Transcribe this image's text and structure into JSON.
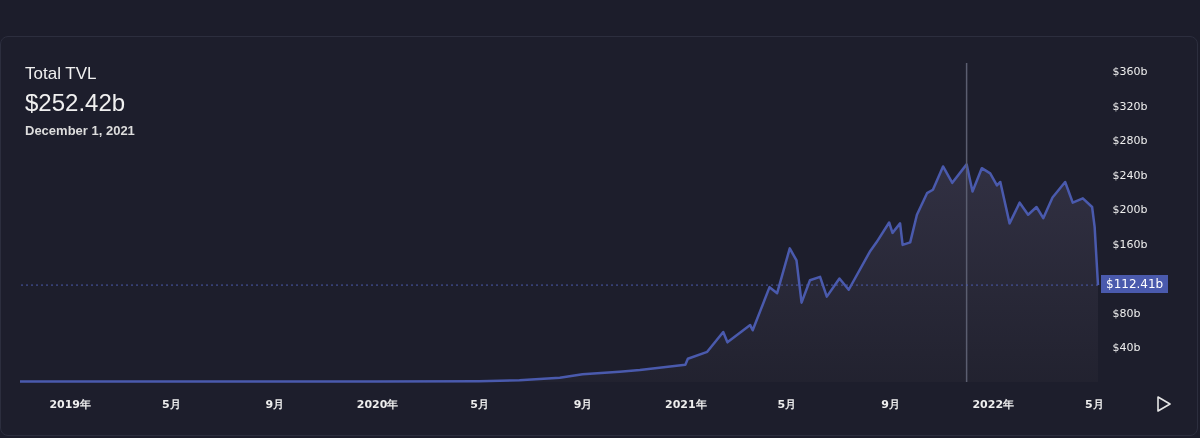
{
  "chart_data": {
    "type": "area",
    "title": "Total TVL",
    "subtitle": "$252.42b",
    "annotations": [
      "December 1, 2021"
    ],
    "x": [
      "2018-11-03",
      "2019-06-04",
      "2020-01-01",
      "2020-05-01",
      "2020-06-18",
      "2020-08-05",
      "2020-09-01",
      "2020-10-15",
      "2020-11-08",
      "2021-01-01",
      "2021-01-04",
      "2021-01-27",
      "2021-02-15",
      "2021-02-20",
      "2021-03-19",
      "2021-03-22",
      "2021-04-11",
      "2021-04-20",
      "2021-05-05",
      "2021-05-13",
      "2021-05-19",
      "2021-05-29",
      "2021-06-10",
      "2021-06-18",
      "2021-07-03",
      "2021-07-14",
      "2021-08-08",
      "2021-08-16",
      "2021-08-31",
      "2021-09-04",
      "2021-09-13",
      "2021-09-16",
      "2021-09-25",
      "2021-10-03",
      "2021-10-15",
      "2021-10-22",
      "2021-11-03",
      "2021-11-14",
      "2021-12-01",
      "2021-12-08",
      "2021-12-19",
      "2021-12-29",
      "2022-01-06",
      "2022-01-10",
      "2022-01-21",
      "2022-02-02",
      "2022-02-12",
      "2022-02-22",
      "2022-03-02",
      "2022-03-13",
      "2022-03-28",
      "2022-04-06",
      "2022-04-18",
      "2022-04-29",
      "2022-05-02",
      "2022-05-06"
    ],
    "series": [
      {
        "color": "#4a5aad",
        "values": [
          0.5,
          0.6,
          0.7,
          1,
          2,
          5,
          9,
          12,
          14,
          20,
          27,
          35,
          58,
          46,
          66,
          60,
          110,
          103,
          155,
          141,
          92,
          118,
          122,
          99,
          120,
          107,
          151,
          162,
          185,
          173,
          184,
          159,
          162,
          194,
          219,
          223,
          250,
          231,
          252.42,
          221,
          248,
          242,
          228,
          232,
          184,
          208,
          194,
          203,
          190,
          214,
          232,
          208,
          213,
          203,
          180,
          112.41
        ]
      }
    ],
    "xlim": [
      "2018-11-03",
      "2022-05-06"
    ],
    "xticks": [
      {
        "value": "2019-01-01",
        "label": "2019年"
      },
      {
        "value": "2019-05-01",
        "label": "5月"
      },
      {
        "value": "2019-09-01",
        "label": "9月"
      },
      {
        "value": "2020-01-01",
        "label": "2020年"
      },
      {
        "value": "2020-05-01",
        "label": "5月"
      },
      {
        "value": "2020-09-01",
        "label": "9月"
      },
      {
        "value": "2021-01-01",
        "label": "2021年"
      },
      {
        "value": "2021-05-01",
        "label": "5月"
      },
      {
        "value": "2021-09-01",
        "label": "9月"
      },
      {
        "value": "2022-01-01",
        "label": "2022年"
      },
      {
        "value": "2022-05-01",
        "label": "5月"
      }
    ],
    "ylim": [
      0,
      370
    ],
    "yticks": [
      {
        "value": 40,
        "label": "$40b"
      },
      {
        "value": 80,
        "label": "$80b"
      },
      {
        "value": 160,
        "label": "$160b"
      },
      {
        "value": 200,
        "label": "$200b"
      },
      {
        "value": 240,
        "label": "$240b"
      },
      {
        "value": 280,
        "label": "$280b"
      },
      {
        "value": 320,
        "label": "$320b"
      },
      {
        "value": 360,
        "label": "$360b"
      }
    ],
    "ref_lines": [
      {
        "axis": "x",
        "value": "2021-12-01",
        "color": "#5b5e70",
        "line_style": "solid"
      },
      {
        "axis": "y",
        "value": 112.41,
        "label": "$112.41b",
        "color": "#4a5aad",
        "line_style": "dotted"
      }
    ]
  }
}
